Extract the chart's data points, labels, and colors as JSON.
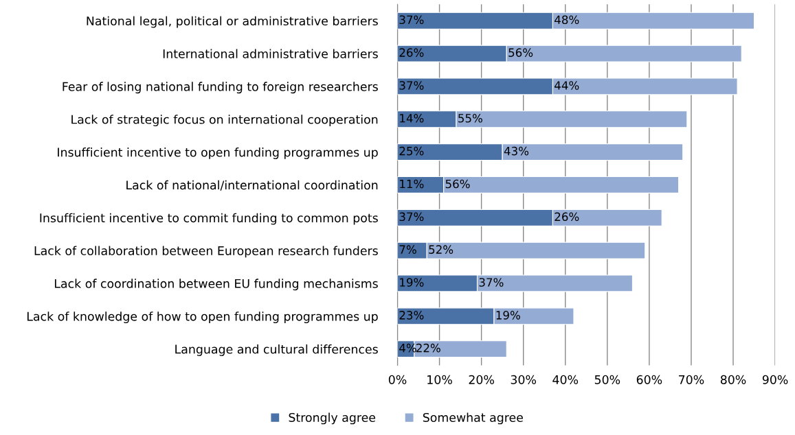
{
  "chart_data": {
    "type": "bar",
    "orientation": "horizontal",
    "stacked": true,
    "categories": [
      "National legal, political or administrative barriers",
      "International administrative barriers",
      "Fear of losing national funding to foreign researchers",
      "Lack of strategic focus on international cooperation",
      "Insufficient incentive to open funding programmes up",
      "Lack of national/international coordination",
      "Insufficient incentive to commit funding to common pots",
      "Lack of collaboration between European research funders",
      "Lack of coordination between EU funding mechanisms",
      "Lack of knowledge of how to open funding programmes up",
      "Language and cultural differences"
    ],
    "series": [
      {
        "name": "Strongly agree",
        "color": "#4a72a6",
        "values": [
          37,
          26,
          37,
          14,
          25,
          11,
          37,
          7,
          19,
          23,
          4
        ],
        "value_labels": [
          "37%",
          "26%",
          "37%",
          "14%",
          "25%",
          "11%",
          "37%",
          "7%",
          "19%",
          "23%",
          "4%"
        ]
      },
      {
        "name": "Somewhat agree",
        "color": "#94acd4",
        "values": [
          48,
          56,
          44,
          55,
          43,
          56,
          26,
          52,
          37,
          19,
          22
        ],
        "value_labels": [
          "48%",
          "56%",
          "44%",
          "55%",
          "43%",
          "56%",
          "26%",
          "52%",
          "37%",
          "19%",
          "22%"
        ]
      }
    ],
    "xlim": [
      0,
      90
    ],
    "xticks": [
      {
        "value": 0,
        "label": "0%"
      },
      {
        "value": 10,
        "label": "10%"
      },
      {
        "value": 20,
        "label": "20%"
      },
      {
        "value": 30,
        "label": "30%"
      },
      {
        "value": 40,
        "label": "40%"
      },
      {
        "value": 50,
        "label": "50%"
      },
      {
        "value": 60,
        "label": "60%"
      },
      {
        "value": 70,
        "label": "70%"
      },
      {
        "value": 80,
        "label": "80%"
      },
      {
        "value": 90,
        "label": "90%"
      }
    ],
    "grid": "x",
    "legend": "bottom"
  }
}
